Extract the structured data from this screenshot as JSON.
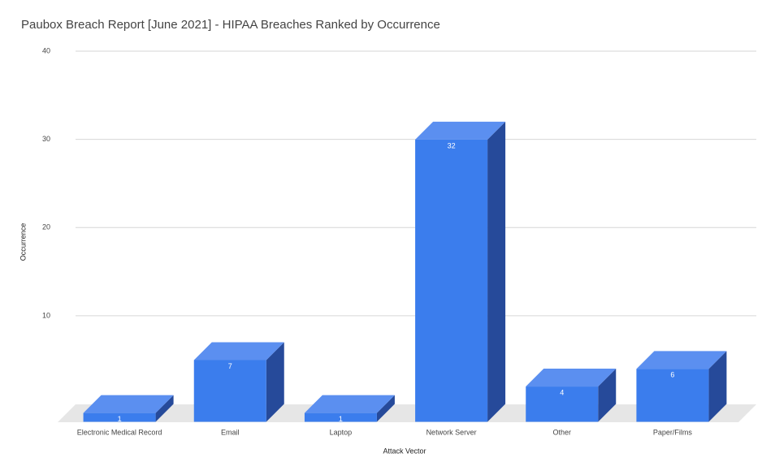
{
  "chart_data": {
    "type": "bar3d",
    "title": "Paubox Breach Report [June 2021] - HIPAA Breaches Ranked by Occurrence",
    "x_label": "Attack Vector",
    "y_label": "Occurrence",
    "categories": [
      "Electronic Medical Record",
      "Email",
      "Laptop",
      "Network Server",
      "Other",
      "Paper/Films"
    ],
    "values": [
      1,
      7,
      1,
      32,
      4,
      6
    ],
    "color": "#3b7ded",
    "ylim": [
      0,
      40
    ],
    "yticks": [
      10,
      20,
      30,
      40
    ],
    "grid": true
  }
}
